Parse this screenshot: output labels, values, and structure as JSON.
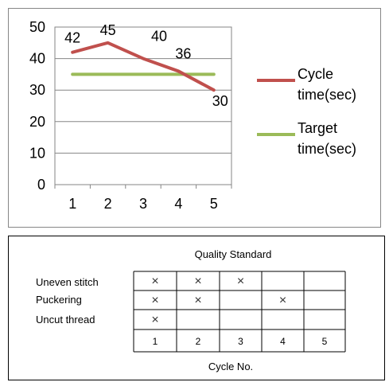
{
  "chart_data": [
    {
      "type": "line",
      "title": "",
      "xlabel": "",
      "ylabel": "",
      "categories": [
        "1",
        "2",
        "3",
        "4",
        "5"
      ],
      "ylim": [
        0,
        50
      ],
      "yticks": [
        "0",
        "10",
        "20",
        "30",
        "40",
        "50"
      ],
      "grid": true,
      "legend_position": "right",
      "series": [
        {
          "name": "Cycle time(sec)",
          "name_lines": [
            "Cycle",
            "time(sec)"
          ],
          "color": "#c0504d",
          "values": [
            42,
            45,
            40,
            36,
            30
          ],
          "data_labels": [
            "42",
            "45",
            "40",
            "36",
            "30"
          ]
        },
        {
          "name": "Target time(sec)",
          "name_lines": [
            "Target",
            "time(sec)"
          ],
          "color": "#9bbb59",
          "values": [
            35,
            35,
            35,
            35,
            35
          ],
          "data_labels": []
        }
      ]
    },
    {
      "type": "table",
      "title": "Quality Standard",
      "xlabel": "Cycle No.",
      "rows": [
        "Uneven stitch",
        "Puckering",
        "Uncut thread"
      ],
      "columns": [
        "1",
        "2",
        "3",
        "4",
        "5"
      ],
      "mark": "×",
      "marks": [
        [
          true,
          true,
          true,
          false,
          false
        ],
        [
          true,
          true,
          false,
          true,
          false
        ],
        [
          true,
          false,
          false,
          false,
          false
        ]
      ]
    }
  ]
}
